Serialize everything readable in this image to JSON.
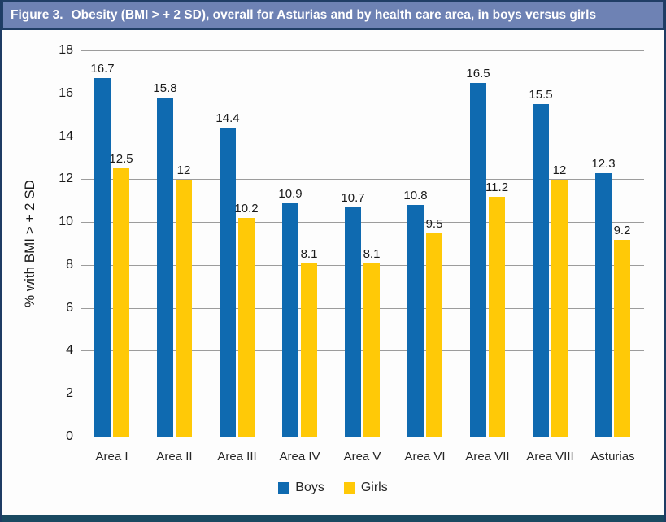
{
  "figure": {
    "label": "Figure 3.",
    "title": "Obesity (BMI > + 2 SD), overall for Asturias and by health care area, in boys versus girls"
  },
  "colors": {
    "header_bg": "#6e82b4",
    "header_border": "#203e66",
    "bottom_strip": "#1a4a61",
    "boys": "#0f6ab0",
    "girls": "#ffc907",
    "gridline": "#9c9c9c"
  },
  "chart_data": {
    "type": "bar",
    "categories": [
      "Area I",
      "Area II",
      "Area III",
      "Area IV",
      "Area V",
      "Area VI",
      "Area VII",
      "Area VIII",
      "Asturias"
    ],
    "series": [
      {
        "name": "Boys",
        "color": "#0f6ab0",
        "values": [
          16.7,
          15.8,
          14.4,
          10.9,
          10.7,
          10.8,
          16.5,
          15.5,
          12.3
        ]
      },
      {
        "name": "Girls",
        "color": "#ffc907",
        "values": [
          12.5,
          12,
          10.2,
          8.1,
          8.1,
          9.5,
          11.2,
          12,
          9.2
        ]
      }
    ],
    "xlabel": "",
    "ylabel": "% with BMI > + 2 SD",
    "ylim": [
      0,
      18
    ],
    "ytick_step": 2,
    "grid": true,
    "legend_position": "bottom",
    "data_labels": true
  }
}
